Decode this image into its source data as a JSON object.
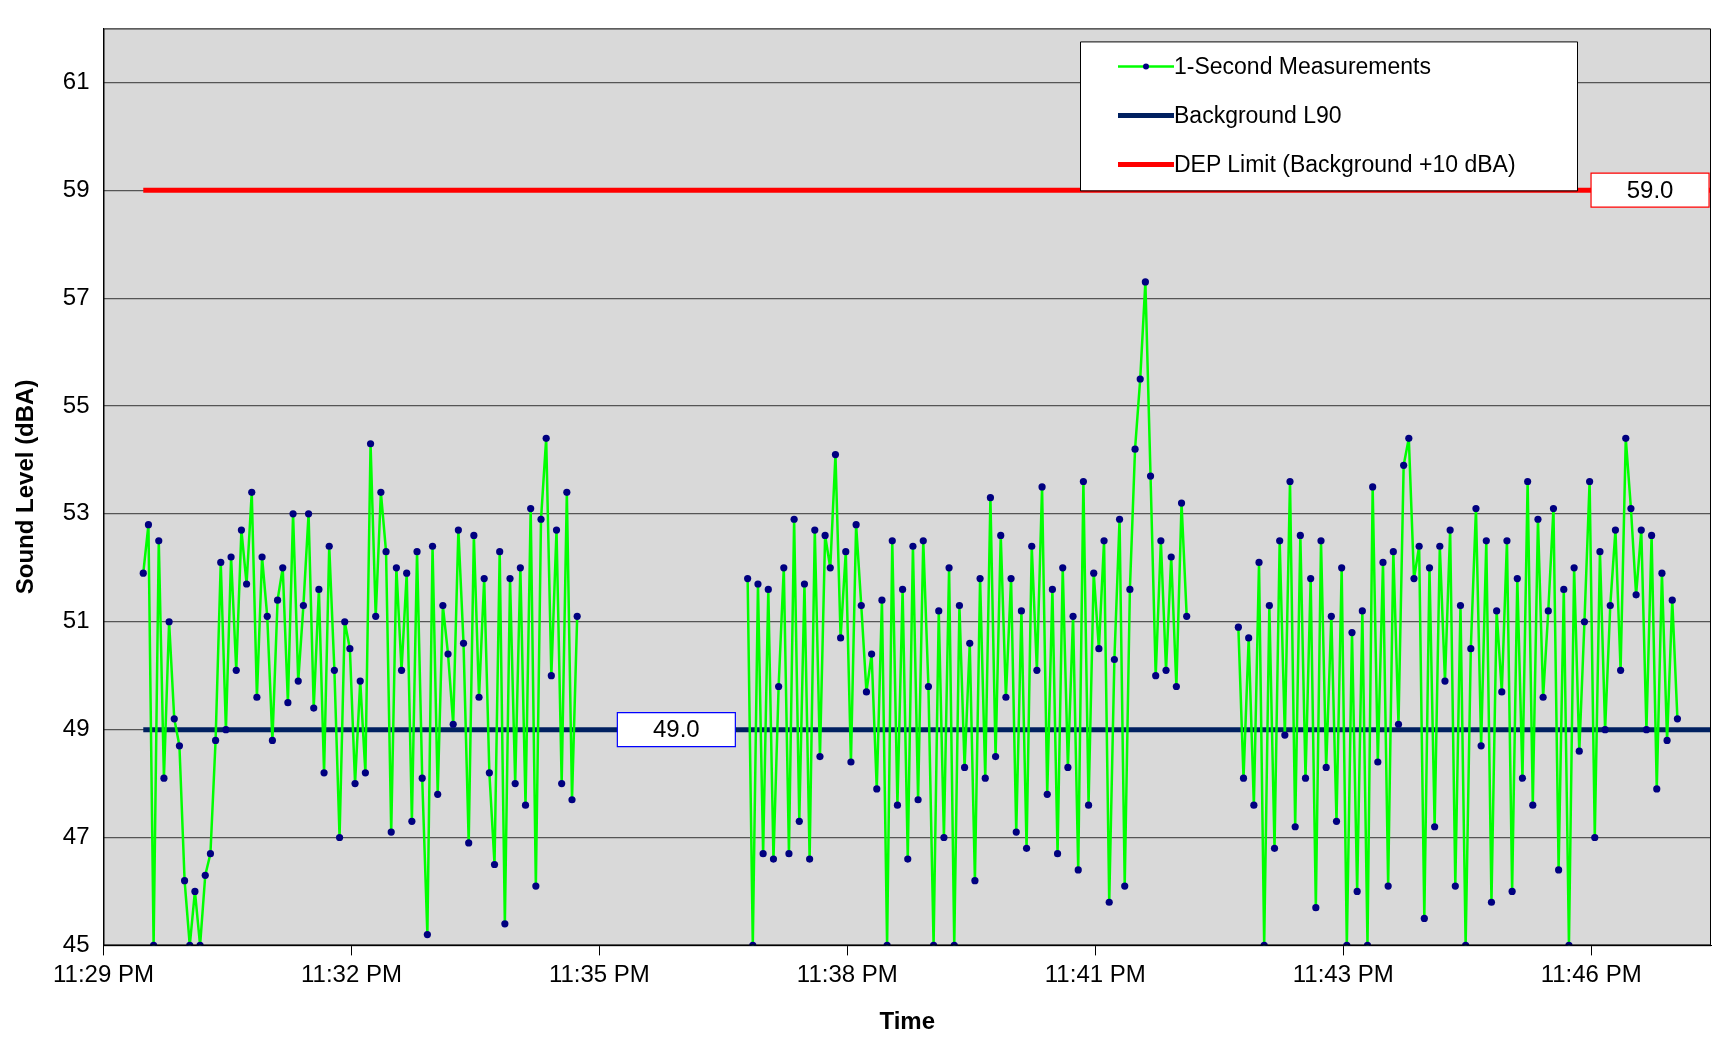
{
  "chart_data": {
    "type": "line",
    "xlabel": "Time",
    "ylabel": "Sound Level (dBA)",
    "xlim": [
      23.4833,
      23.7945
    ],
    "xticks": [
      {
        "value": 23.4833,
        "label": "11:29 PM"
      },
      {
        "value": 23.5313,
        "label": "11:32 PM"
      },
      {
        "value": 23.5793,
        "label": "11:35 PM"
      },
      {
        "value": 23.6273,
        "label": "11:38 PM"
      },
      {
        "value": 23.6753,
        "label": "11:41 PM"
      },
      {
        "value": 23.7233,
        "label": "11:43 PM"
      },
      {
        "value": 23.7713,
        "label": "11:46 PM"
      }
    ],
    "ylim": [
      45,
      62
    ],
    "yticks": [
      45,
      47,
      49,
      51,
      53,
      55,
      57,
      59,
      61
    ],
    "grid": "y",
    "legend": "top right",
    "series": [
      {
        "name": "1-Second Measurements",
        "color": "#00ff00",
        "marker": "circle",
        "x": [
          23.491,
          23.492,
          23.493,
          23.494,
          23.495,
          23.496,
          23.497,
          23.498,
          23.499,
          23.5,
          23.501,
          23.502,
          23.503,
          23.504,
          23.505,
          23.506,
          23.507,
          23.508,
          23.509,
          23.51,
          23.511,
          23.512,
          23.513,
          23.514,
          23.515,
          23.516,
          23.517,
          23.518,
          23.519,
          23.52,
          23.521,
          23.522,
          23.523,
          23.524,
          23.525,
          23.526,
          23.527,
          23.528,
          23.529,
          23.53,
          23.531,
          23.532,
          23.533,
          23.534,
          23.535,
          23.536,
          23.537,
          23.538,
          23.539,
          23.54,
          23.541,
          23.542,
          23.543,
          23.544,
          23.545,
          23.546,
          23.547,
          23.548,
          23.549,
          23.55,
          23.551,
          23.552,
          23.553,
          23.554,
          23.555,
          23.556,
          23.557,
          23.558,
          23.559,
          23.56,
          23.561,
          23.562,
          23.563,
          23.564,
          23.565,
          23.566,
          23.567,
          23.568,
          23.569,
          23.57,
          23.571,
          23.572,
          23.573,
          23.574,
          23.575,
          23.59,
          23.608,
          23.609,
          23.61,
          23.611,
          23.612,
          23.613,
          23.614,
          23.615,
          23.616,
          23.617,
          23.618,
          23.619,
          23.62,
          23.621,
          23.622,
          23.623,
          23.624,
          23.625,
          23.626,
          23.627,
          23.628,
          23.629,
          23.63,
          23.631,
          23.632,
          23.633,
          23.634,
          23.635,
          23.636,
          23.637,
          23.638,
          23.639,
          23.64,
          23.641,
          23.642,
          23.643,
          23.644,
          23.645,
          23.646,
          23.647,
          23.648,
          23.649,
          23.65,
          23.651,
          23.652,
          23.653,
          23.654,
          23.655,
          23.656,
          23.657,
          23.658,
          23.659,
          23.66,
          23.661,
          23.662,
          23.663,
          23.664,
          23.665,
          23.666,
          23.667,
          23.668,
          23.669,
          23.67,
          23.671,
          23.672,
          23.673,
          23.674,
          23.675,
          23.676,
          23.677,
          23.678,
          23.679,
          23.68,
          23.681,
          23.682,
          23.683,
          23.684,
          23.685,
          23.686,
          23.687,
          23.688,
          23.689,
          23.69,
          23.691,
          23.692,
          23.693,
          23.698,
          23.703,
          23.704,
          23.705,
          23.706,
          23.707,
          23.708,
          23.709,
          23.71,
          23.711,
          23.712,
          23.713,
          23.714,
          23.715,
          23.716,
          23.717,
          23.718,
          23.719,
          23.72,
          23.721,
          23.722,
          23.723,
          23.724,
          23.725,
          23.726,
          23.727,
          23.728,
          23.729,
          23.73,
          23.731,
          23.732,
          23.733,
          23.734,
          23.735,
          23.736,
          23.737,
          23.738,
          23.739,
          23.74,
          23.741,
          23.742,
          23.743,
          23.744,
          23.745,
          23.746,
          23.747,
          23.748,
          23.749,
          23.75,
          23.751,
          23.752,
          23.753,
          23.754,
          23.755,
          23.756,
          23.757,
          23.758,
          23.759,
          23.76,
          23.761,
          23.762,
          23.763,
          23.764,
          23.765,
          23.766,
          23.767,
          23.768,
          23.769,
          23.77,
          23.771,
          23.772,
          23.773,
          23.774,
          23.775,
          23.776,
          23.777,
          23.778,
          23.779,
          23.78,
          23.781,
          23.782,
          23.783,
          23.784,
          23.785,
          23.786,
          23.787,
          23.788
        ],
        "values": [
          51.9,
          52.8,
          45.0,
          52.5,
          48.1,
          51.0,
          49.2,
          48.7,
          46.2,
          45.0,
          46.0,
          45.0,
          46.3,
          46.7,
          48.8,
          52.1,
          49.0,
          52.2,
          50.1,
          52.7,
          51.7,
          53.4,
          49.6,
          52.2,
          51.1,
          48.8,
          51.4,
          52.0,
          49.5,
          53.0,
          49.9,
          51.3,
          53.0,
          49.4,
          51.6,
          48.2,
          52.4,
          50.1,
          47.0,
          51.0,
          50.5,
          48.0,
          49.9,
          48.2,
          54.3,
          51.1,
          53.4,
          52.3,
          47.1,
          52.0,
          50.1,
          51.9,
          47.3,
          52.3,
          48.1,
          45.2,
          52.4,
          47.8,
          51.3,
          50.4,
          49.1,
          52.7,
          50.6,
          46.9,
          52.6,
          49.6,
          51.8,
          48.2,
          46.5,
          52.3,
          45.4,
          51.8,
          48.0,
          52.0,
          47.6,
          53.1,
          46.1,
          52.9,
          54.4,
          50.0,
          52.7,
          48.0,
          53.4,
          47.7,
          51.1,
          null,
          51.8,
          45.0,
          51.7,
          46.7,
          51.6,
          46.6,
          49.8,
          52.0,
          46.7,
          52.9,
          47.3,
          51.7,
          46.6,
          52.7,
          48.5,
          52.6,
          52.0,
          54.1,
          50.7,
          52.3,
          48.4,
          52.8,
          51.3,
          49.7,
          50.4,
          47.9,
          51.4,
          45.0,
          52.5,
          47.6,
          51.6,
          46.6,
          52.4,
          47.7,
          52.5,
          49.8,
          45.0,
          51.2,
          47.0,
          52.0,
          45.0,
          51.3,
          48.3,
          50.6,
          46.2,
          51.8,
          48.1,
          53.3,
          48.5,
          52.6,
          49.6,
          51.8,
          47.1,
          51.2,
          46.8,
          52.4,
          50.1,
          53.5,
          47.8,
          51.6,
          46.7,
          52.0,
          48.3,
          51.1,
          46.4,
          53.6,
          47.6,
          51.9,
          50.5,
          52.5,
          45.8,
          50.3,
          52.9,
          46.1,
          51.6,
          54.2,
          55.5,
          57.3,
          53.7,
          50.0,
          52.5,
          50.1,
          52.2,
          49.8,
          53.2,
          51.1,
          null,
          50.9,
          48.1,
          50.7,
          47.6,
          52.1,
          45.0,
          51.3,
          46.8,
          52.5,
          48.9,
          53.6,
          47.2,
          52.6,
          48.1,
          51.8,
          45.7,
          52.5,
          48.3,
          51.1,
          47.3,
          52.0,
          45.0,
          50.8,
          46.0,
          51.2,
          45.0,
          53.5,
          48.4,
          52.1,
          46.1,
          52.3,
          49.1,
          53.9,
          54.4,
          51.8,
          52.4,
          45.5,
          52.0,
          47.2,
          52.4,
          49.9,
          52.7,
          46.1,
          51.3,
          45.0,
          50.5,
          53.1,
          48.7,
          52.5,
          45.8,
          51.2,
          49.7,
          52.5,
          46.0,
          51.8,
          48.1,
          53.6,
          47.6,
          52.9,
          49.6,
          51.2,
          53.1,
          46.4,
          51.6,
          45.0,
          52.0,
          48.6,
          51.0,
          53.6,
          47.0,
          52.3,
          49.0,
          51.3,
          52.7,
          50.1,
          54.4,
          53.1,
          51.5,
          52.7,
          49.0,
          52.6,
          47.9,
          51.9,
          48.8,
          51.4,
          49.2
        ]
      },
      {
        "name": "Background L90",
        "color": "#002060",
        "marker": "none",
        "x": [
          23.491,
          23.7945
        ],
        "values": [
          49,
          49
        ]
      },
      {
        "name": "DEP Limit (Background +10 dBA)",
        "color": "#ff0000",
        "marker": "none",
        "x": [
          23.491,
          23.7945
        ],
        "values": [
          59,
          59
        ]
      }
    ],
    "annotations": [
      {
        "text": "49.0",
        "x": 23.5942,
        "y": 49
      },
      {
        "text": "59.0",
        "x": 23.7827,
        "y": 59
      }
    ]
  }
}
